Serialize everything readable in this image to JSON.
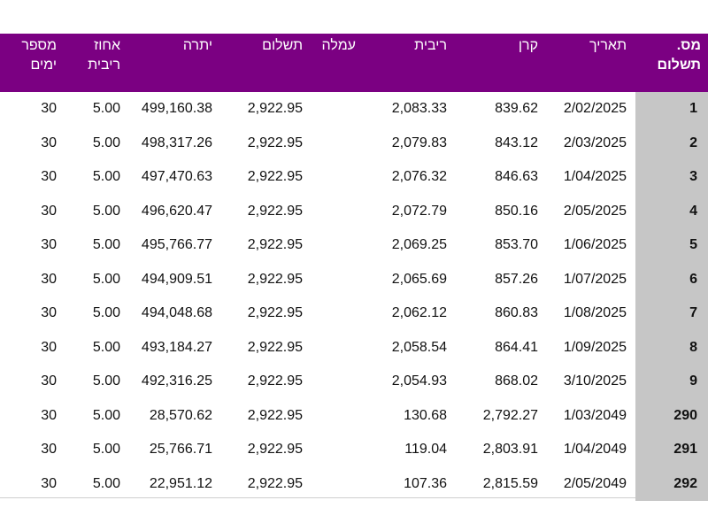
{
  "headers": {
    "payment_no": "מס. תשלום",
    "date": "תאריך",
    "principal": "קרן",
    "interest": "ריבית",
    "fee": "עמלה",
    "payment": "תשלום",
    "balance": "יתרה",
    "interest_rate": "אחוז ריבית",
    "days": "מספר ימים"
  },
  "rows": [
    {
      "no": "1",
      "date": "2/02/2025",
      "principal": "839.62",
      "interest": "2,083.33",
      "fee": "",
      "payment": "2,922.95",
      "balance": "499,160.38",
      "rate": "5.00",
      "days": "30"
    },
    {
      "no": "2",
      "date": "2/03/2025",
      "principal": "843.12",
      "interest": "2,079.83",
      "fee": "",
      "payment": "2,922.95",
      "balance": "498,317.26",
      "rate": "5.00",
      "days": "30"
    },
    {
      "no": "3",
      "date": "1/04/2025",
      "principal": "846.63",
      "interest": "2,076.32",
      "fee": "",
      "payment": "2,922.95",
      "balance": "497,470.63",
      "rate": "5.00",
      "days": "30"
    },
    {
      "no": "4",
      "date": "2/05/2025",
      "principal": "850.16",
      "interest": "2,072.79",
      "fee": "",
      "payment": "2,922.95",
      "balance": "496,620.47",
      "rate": "5.00",
      "days": "30"
    },
    {
      "no": "5",
      "date": "1/06/2025",
      "principal": "853.70",
      "interest": "2,069.25",
      "fee": "",
      "payment": "2,922.95",
      "balance": "495,766.77",
      "rate": "5.00",
      "days": "30"
    },
    {
      "no": "6",
      "date": "1/07/2025",
      "principal": "857.26",
      "interest": "2,065.69",
      "fee": "",
      "payment": "2,922.95",
      "balance": "494,909.51",
      "rate": "5.00",
      "days": "30"
    },
    {
      "no": "7",
      "date": "1/08/2025",
      "principal": "860.83",
      "interest": "2,062.12",
      "fee": "",
      "payment": "2,922.95",
      "balance": "494,048.68",
      "rate": "5.00",
      "days": "30"
    },
    {
      "no": "8",
      "date": "1/09/2025",
      "principal": "864.41",
      "interest": "2,058.54",
      "fee": "",
      "payment": "2,922.95",
      "balance": "493,184.27",
      "rate": "5.00",
      "days": "30"
    },
    {
      "no": "9",
      "date": "3/10/2025",
      "principal": "868.02",
      "interest": "2,054.93",
      "fee": "",
      "payment": "2,922.95",
      "balance": "492,316.25",
      "rate": "5.00",
      "days": "30"
    },
    {
      "no": "290",
      "date": "1/03/2049",
      "principal": "2,792.27",
      "interest": "130.68",
      "fee": "",
      "payment": "2,922.95",
      "balance": "28,570.62",
      "rate": "5.00",
      "days": "30"
    },
    {
      "no": "291",
      "date": "1/04/2049",
      "principal": "2,803.91",
      "interest": "119.04",
      "fee": "",
      "payment": "2,922.95",
      "balance": "25,766.71",
      "rate": "5.00",
      "days": "30"
    },
    {
      "no": "292",
      "date": "2/05/2049",
      "principal": "2,815.59",
      "interest": "107.36",
      "fee": "",
      "payment": "2,922.95",
      "balance": "22,951.12",
      "rate": "5.00",
      "days": "30"
    }
  ],
  "colors": {
    "header_bg": "#7b0082",
    "header_text": "#ffffff",
    "index_col_bg": "#c6c6c6"
  }
}
